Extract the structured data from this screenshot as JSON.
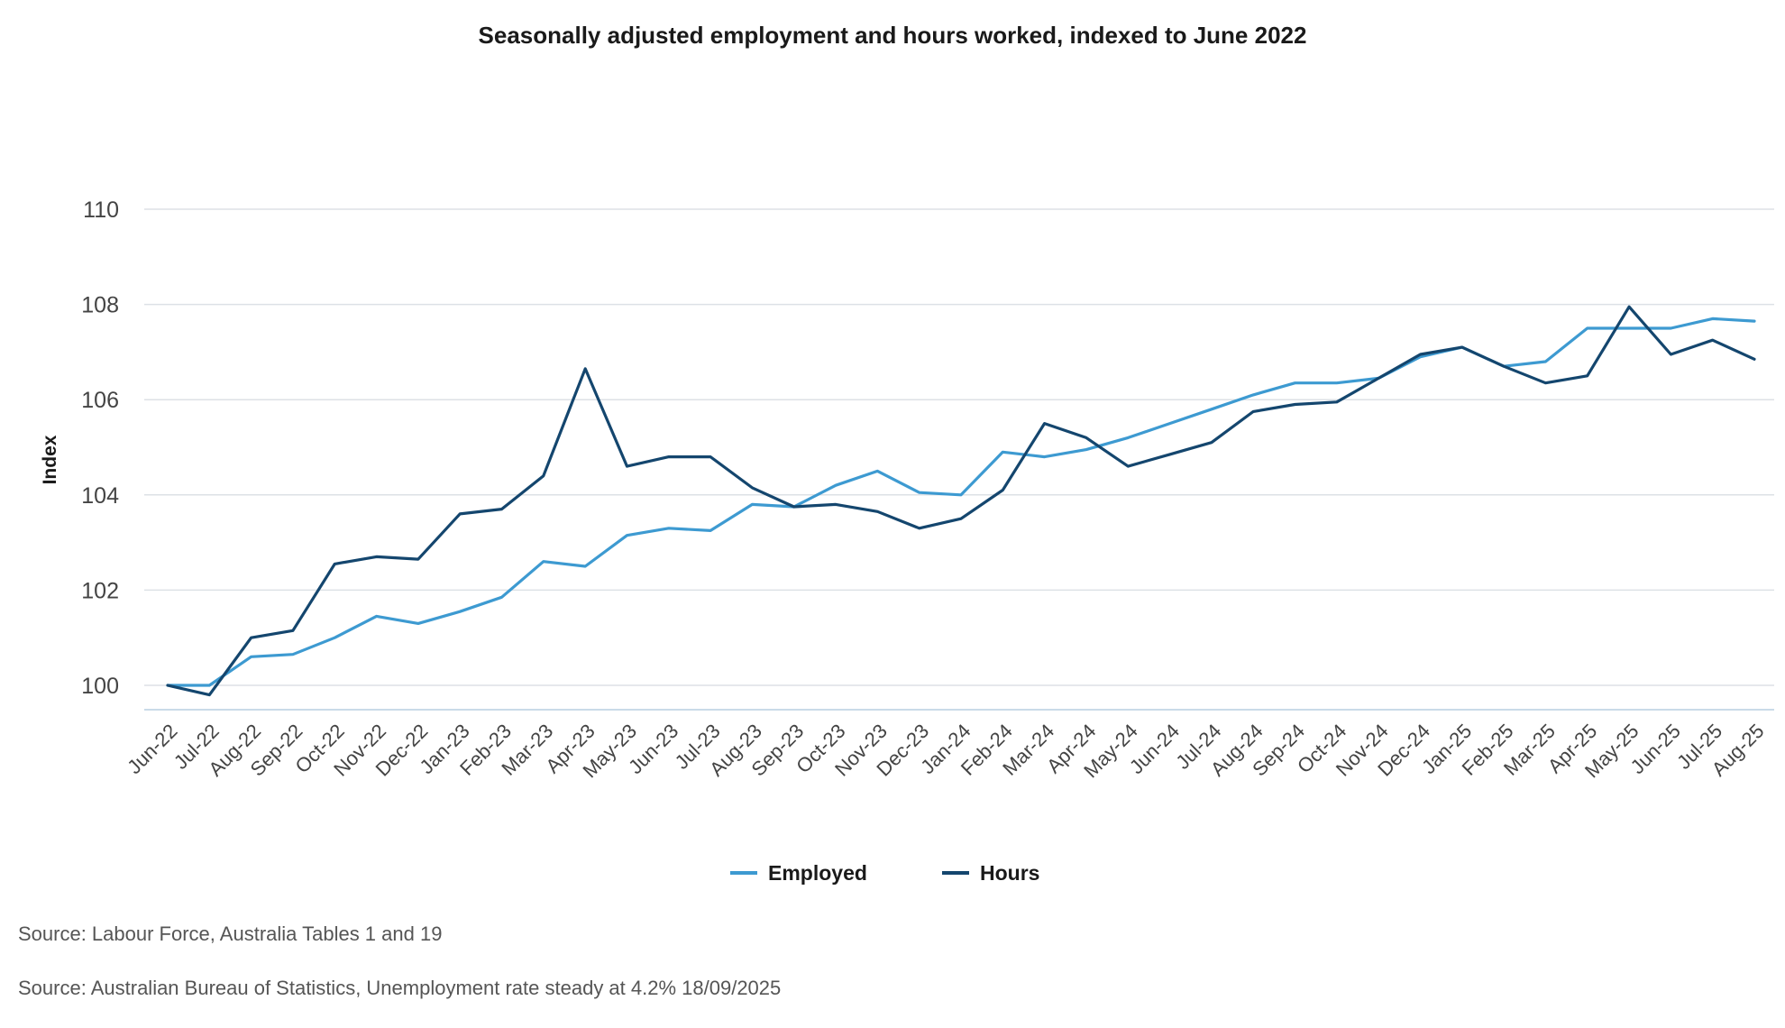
{
  "chart_data": {
    "type": "line",
    "title": "Seasonally adjusted employment and hours worked, indexed to June 2022",
    "xlabel": "",
    "ylabel": "Index",
    "ylim": [
      99.4,
      110
    ],
    "yticks": [
      100,
      102,
      104,
      106,
      108,
      110
    ],
    "grid": true,
    "legend_position": "bottom",
    "categories": [
      "Jun-22",
      "Jul-22",
      "Aug-22",
      "Sep-22",
      "Oct-22",
      "Nov-22",
      "Dec-22",
      "Jan-23",
      "Feb-23",
      "Mar-23",
      "Apr-23",
      "May-23",
      "Jun-23",
      "Jul-23",
      "Aug-23",
      "Sep-23",
      "Oct-23",
      "Nov-23",
      "Dec-23",
      "Jan-24",
      "Feb-24",
      "Mar-24",
      "Apr-24",
      "May-24",
      "Jun-24",
      "Jul-24",
      "Aug-24",
      "Sep-24",
      "Oct-24",
      "Nov-24",
      "Dec-24",
      "Jan-25",
      "Feb-25",
      "Mar-25",
      "Apr-25",
      "May-25",
      "Jun-25",
      "Jul-25",
      "Aug-25"
    ],
    "series": [
      {
        "name": "Employed",
        "color": "#3d9ad1",
        "values": [
          100.0,
          100.0,
          100.6,
          100.65,
          101.0,
          101.45,
          101.3,
          101.55,
          101.85,
          102.6,
          102.5,
          103.15,
          103.3,
          103.25,
          103.8,
          103.75,
          104.2,
          104.5,
          104.05,
          104.0,
          104.9,
          104.8,
          104.95,
          105.2,
          105.5,
          105.8,
          106.1,
          106.35,
          106.35,
          106.45,
          106.9,
          107.1,
          106.7,
          106.8,
          107.5,
          107.5,
          107.5,
          107.7,
          107.65
        ]
      },
      {
        "name": "Hours",
        "color": "#14466e",
        "values": [
          100.0,
          99.8,
          101.0,
          101.15,
          102.55,
          102.7,
          102.65,
          103.6,
          103.7,
          104.4,
          106.65,
          104.6,
          104.8,
          104.8,
          104.15,
          103.75,
          103.8,
          103.65,
          103.3,
          103.5,
          104.1,
          105.5,
          105.2,
          104.6,
          104.85,
          105.1,
          105.75,
          105.9,
          105.95,
          106.45,
          106.95,
          107.1,
          106.7,
          106.35,
          106.5,
          107.95,
          106.95,
          107.25,
          106.85
        ]
      }
    ]
  },
  "sources": [
    "Source: Labour Force, Australia Tables 1 and 19",
    "Source: Australian Bureau of Statistics, Unemployment rate steady at 4.2% 18/09/2025"
  ]
}
